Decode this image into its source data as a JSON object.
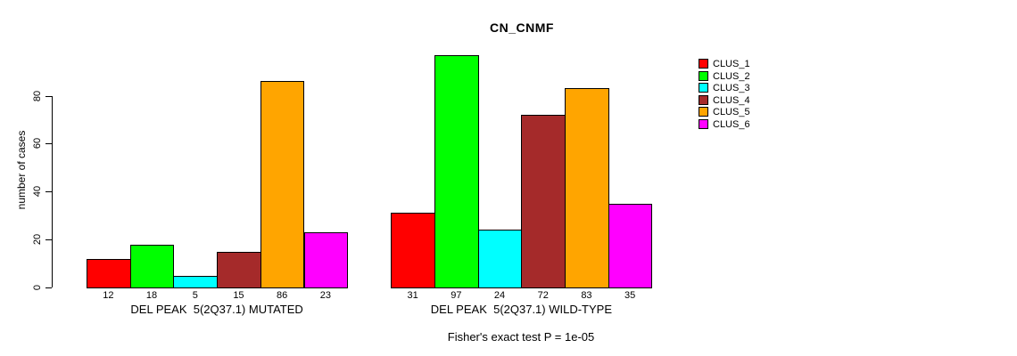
{
  "title": "CN_CNMF",
  "footer": "Fisher's exact test P = 1e-05",
  "y_axis": {
    "label": "number of cases"
  },
  "chart_data": {
    "type": "bar",
    "title": "CN_CNMF",
    "ylabel": "number of cases",
    "xlabel": "",
    "annotation": "Fisher's exact test P = 1e-05",
    "ylim": [
      0,
      97
    ],
    "yticks": [
      0,
      20,
      40,
      60,
      80
    ],
    "grid": false,
    "legend_position": "right",
    "bar_value_labels_shown": true,
    "series": [
      {
        "name": "CLUS_1",
        "color": "#FF0000"
      },
      {
        "name": "CLUS_2",
        "color": "#00FF00"
      },
      {
        "name": "CLUS_3",
        "color": "#00FFFF"
      },
      {
        "name": "CLUS_4",
        "color": "#A52A2A"
      },
      {
        "name": "CLUS_5",
        "color": "#FFA500"
      },
      {
        "name": "CLUS_6",
        "color": "#FF00FF"
      }
    ],
    "groups": [
      {
        "label": "DEL PEAK  5(2Q37.1) MUTATED",
        "values": [
          12,
          18,
          5,
          15,
          86,
          23
        ]
      },
      {
        "label": "DEL PEAK  5(2Q37.1) WILD-TYPE",
        "values": [
          31,
          97,
          24,
          72,
          83,
          35
        ]
      }
    ]
  }
}
